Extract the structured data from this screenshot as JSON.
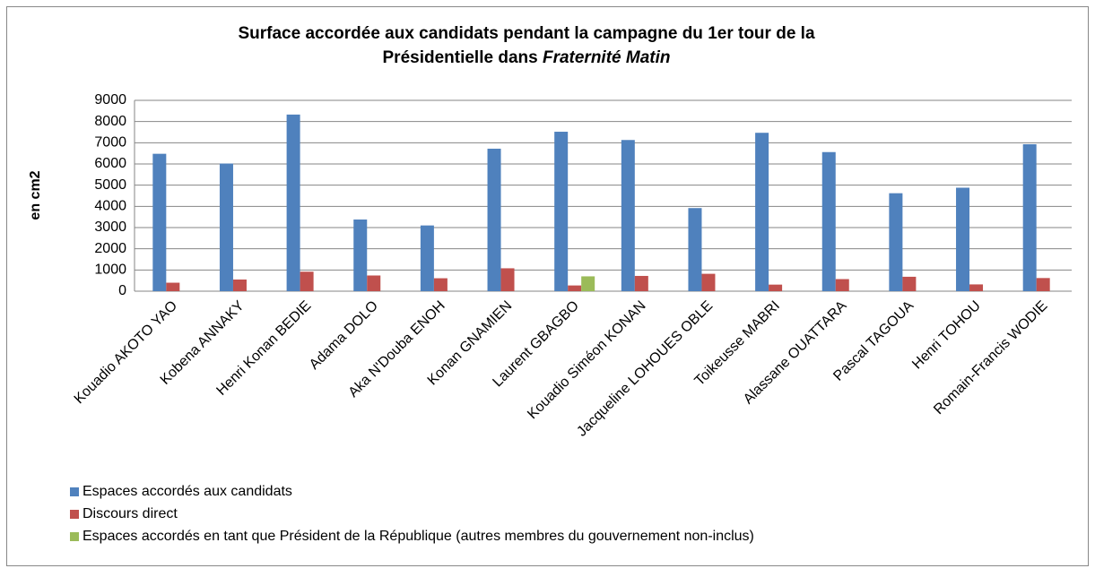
{
  "chart_data": {
    "type": "bar",
    "title": [
      "Surface accordée aux candidats pendant la campagne du 1er tour de la",
      "Présidentielle dans",
      "Fraternité Matin"
    ],
    "y_label": "en cm2",
    "categories": [
      "Kouadio AKOTO YAO",
      "Kobena ANNAKY",
      "Henri Konan BEDIE",
      "Adama DOLO",
      "Aka N'Douba ENOH",
      "Konan GNAMIEN",
      "Laurent GBAGBO",
      "Kouadio Siméon KONAN",
      "Jacqueline LOHOUES OBLE",
      "Toikeusse MABRI",
      "Alassane OUATTARA",
      "Pascal TAGOUA",
      "Henri TOHOU",
      "Romain-Francis WODIE"
    ],
    "series": [
      {
        "name": "Espaces accordés aux candidats",
        "color": "#4f81bd",
        "values": [
          6480,
          6020,
          8330,
          3380,
          3100,
          6720,
          7520,
          7130,
          3920,
          7470,
          6560,
          4620,
          4880,
          6930
        ]
      },
      {
        "name": "Discours direct",
        "color": "#c0504d",
        "values": [
          400,
          550,
          920,
          740,
          610,
          1080,
          270,
          720,
          820,
          310,
          570,
          680,
          320,
          620
        ]
      },
      {
        "name": "Espaces accordés en tant que Président de la République (autres membres du gouvernement non-inclus)",
        "color": "#9bbb59",
        "values": [
          null,
          null,
          null,
          null,
          null,
          null,
          700,
          null,
          null,
          null,
          null,
          null,
          null,
          null
        ]
      }
    ],
    "ylim": [
      0,
      9000
    ],
    "yticks": [
      0,
      1000,
      2000,
      3000,
      4000,
      5000,
      6000,
      7000,
      8000,
      9000
    ],
    "grid": true
  }
}
